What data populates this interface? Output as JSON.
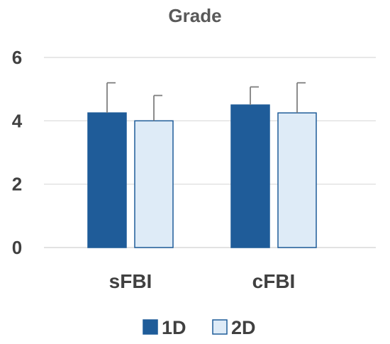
{
  "chart_data": {
    "type": "bar",
    "title": "Grade",
    "categories": [
      "sFBI",
      "cFBI"
    ],
    "series": [
      {
        "name": "1D",
        "values": [
          4.25,
          4.5
        ],
        "error_plus": [
          0.95,
          0.57
        ],
        "color": "#1f5c99",
        "stroke": "#1f5c99"
      },
      {
        "name": "2D",
        "values": [
          4.0,
          4.25
        ],
        "error_plus": [
          0.8,
          0.95
        ],
        "color": "#deebf7",
        "stroke": "#1f5c99"
      }
    ],
    "ylim": [
      0,
      6
    ],
    "yticks": [
      0,
      2,
      4,
      6
    ],
    "grid": true,
    "legend": "bottom",
    "xlabel": "",
    "ylabel": ""
  }
}
